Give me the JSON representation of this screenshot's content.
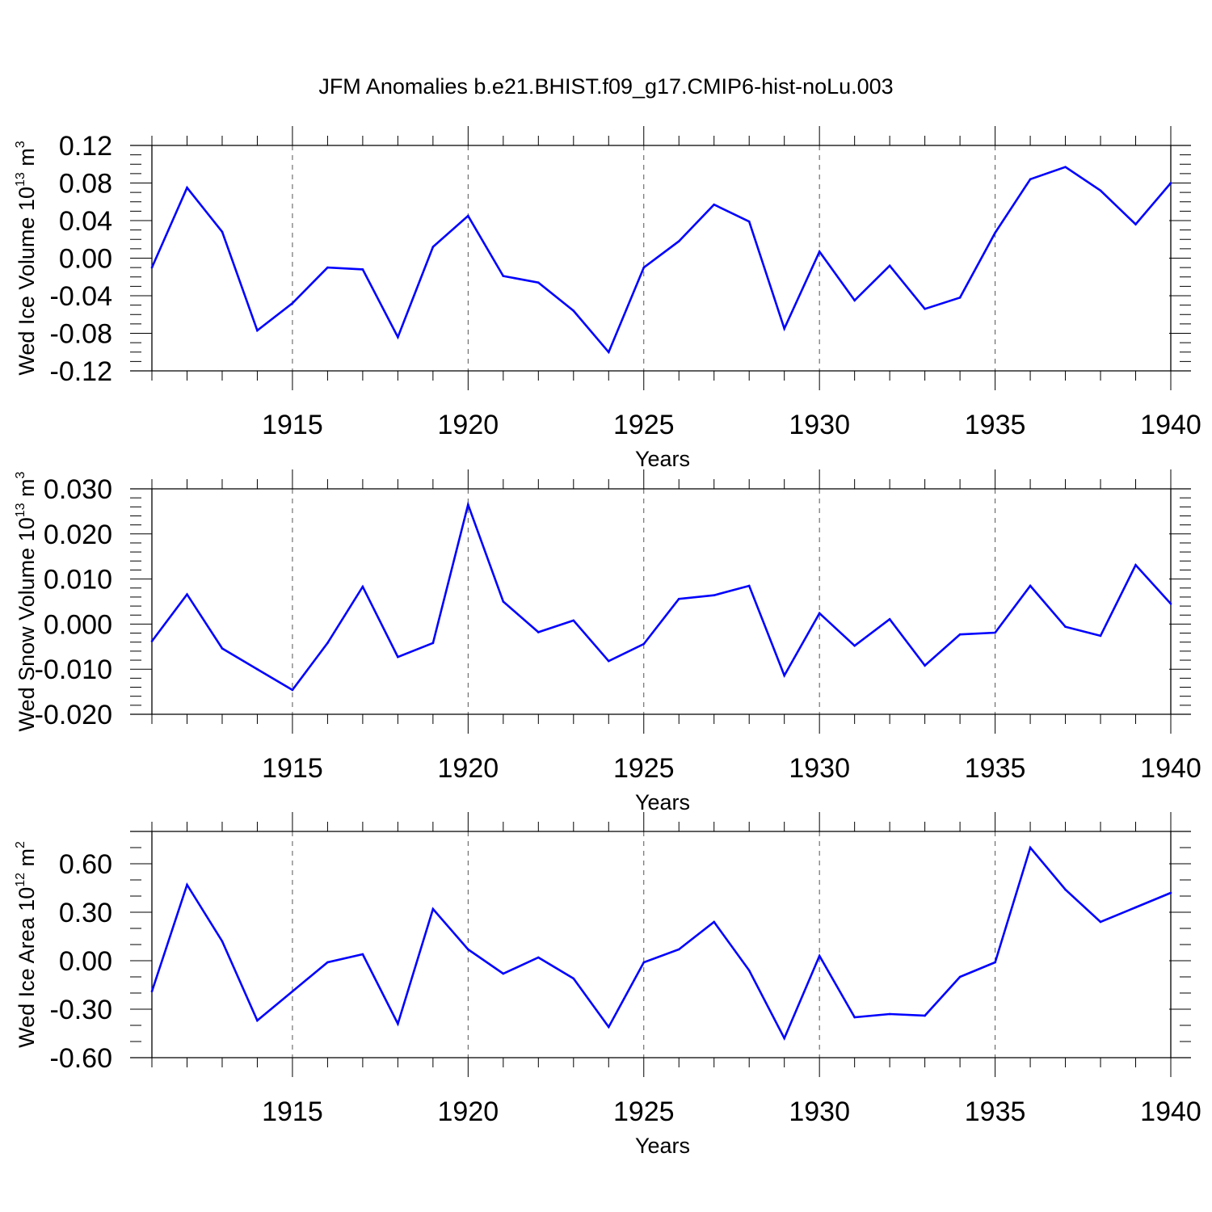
{
  "chart_data": [
    {
      "type": "line",
      "title": "JFM Anomalies b.e21.BHIST.f09_g17.CMIP6-hist-noLu.003",
      "xlabel": "Years",
      "ylabel_main": "Wed Ice Volume 10",
      "ylabel_exp": "13",
      "ylabel_unit": " m",
      "ylabel_unit_exp": "3",
      "xlim": [
        1911,
        1940
      ],
      "ylim": [
        -0.12,
        0.12
      ],
      "yticks": [
        -0.12,
        -0.08,
        -0.04,
        0.0,
        0.04,
        0.08,
        0.12
      ],
      "ytick_labels": [
        "-0.12",
        "-0.08",
        "-0.04",
        "0.00",
        "0.04",
        "0.08",
        "0.12"
      ],
      "yminor_step": 0.01,
      "xticks": [
        1915,
        1920,
        1925,
        1930,
        1935,
        1940
      ],
      "xtick_labels": [
        "1915",
        "1920",
        "1925",
        "1930",
        "1935",
        "1940"
      ],
      "grid": "vertical dashed at major x ticks",
      "line_color": "#0000ff",
      "series": [
        {
          "name": "Wed Ice Volume",
          "x": [
            1911,
            1912,
            1913,
            1914,
            1915,
            1916,
            1917,
            1918,
            1919,
            1920,
            1921,
            1922,
            1923,
            1924,
            1925,
            1926,
            1927,
            1928,
            1929,
            1930,
            1931,
            1932,
            1933,
            1934,
            1935,
            1936,
            1937,
            1938,
            1939,
            1940
          ],
          "values": [
            -0.01,
            0.075,
            0.028,
            -0.077,
            -0.048,
            -0.01,
            -0.012,
            -0.084,
            0.012,
            0.045,
            -0.019,
            -0.026,
            -0.056,
            -0.1,
            -0.01,
            0.018,
            0.057,
            0.039,
            -0.075,
            0.007,
            -0.045,
            -0.008,
            -0.054,
            -0.042,
            0.027,
            0.084,
            0.097,
            0.072,
            0.036,
            0.08
          ]
        }
      ]
    },
    {
      "type": "line",
      "title": "",
      "xlabel": "Years",
      "ylabel_main": "Wed Snow Volume 10",
      "ylabel_exp": "13",
      "ylabel_unit": " m",
      "ylabel_unit_exp": "3",
      "xlim": [
        1911,
        1940
      ],
      "ylim": [
        -0.02,
        0.03
      ],
      "yticks": [
        -0.02,
        -0.01,
        0.0,
        0.01,
        0.02,
        0.03
      ],
      "ytick_labels": [
        "-0.020",
        "-0.010",
        "0.000",
        "0.010",
        "0.020",
        "0.030"
      ],
      "yminor_step": 0.002,
      "xticks": [
        1915,
        1920,
        1925,
        1930,
        1935,
        1940
      ],
      "xtick_labels": [
        "1915",
        "1920",
        "1925",
        "1930",
        "1935",
        "1940"
      ],
      "grid": "vertical dashed at major x ticks",
      "line_color": "#0000ff",
      "series": [
        {
          "name": "Wed Snow Volume",
          "x": [
            1911,
            1912,
            1913,
            1914,
            1915,
            1916,
            1917,
            1918,
            1919,
            1920,
            1921,
            1922,
            1923,
            1924,
            1925,
            1926,
            1927,
            1928,
            1929,
            1930,
            1931,
            1932,
            1933,
            1934,
            1935,
            1936,
            1937,
            1938,
            1939,
            1940
          ],
          "values": [
            -0.0038,
            0.0066,
            -0.0054,
            -0.01,
            -0.0146,
            -0.0042,
            0.0083,
            -0.0073,
            -0.0042,
            0.0265,
            0.005,
            -0.0018,
            0.0008,
            -0.0082,
            -0.0044,
            0.0056,
            0.0064,
            0.0085,
            -0.0114,
            0.0024,
            -0.0048,
            0.0011,
            -0.0092,
            -0.0023,
            -0.0019,
            0.0085,
            -0.0006,
            -0.0026,
            0.0131,
            0.0045
          ]
        }
      ]
    },
    {
      "type": "line",
      "title": "",
      "xlabel": "Years",
      "ylabel_main": "Wed Ice Area 10",
      "ylabel_exp": "12",
      "ylabel_unit": " m",
      "ylabel_unit_exp": "2",
      "xlim": [
        1911,
        1940
      ],
      "ylim": [
        -0.6,
        0.8
      ],
      "yticks": [
        -0.6,
        -0.3,
        0.0,
        0.3,
        0.6
      ],
      "ytick_labels": [
        "-0.60",
        "-0.30",
        "0.00",
        "0.30",
        "0.60"
      ],
      "yminor_step": 0.1,
      "xticks": [
        1915,
        1920,
        1925,
        1930,
        1935,
        1940
      ],
      "xtick_labels": [
        "1915",
        "1920",
        "1925",
        "1930",
        "1935",
        "1940"
      ],
      "grid": "vertical dashed at major x ticks",
      "line_color": "#0000ff",
      "series": [
        {
          "name": "Wed Ice Area",
          "x": [
            1911,
            1912,
            1913,
            1914,
            1915,
            1916,
            1917,
            1918,
            1919,
            1920,
            1921,
            1922,
            1923,
            1924,
            1925,
            1926,
            1927,
            1928,
            1929,
            1930,
            1931,
            1932,
            1933,
            1934,
            1935,
            1936,
            1937,
            1938,
            1939,
            1940
          ],
          "values": [
            -0.19,
            0.47,
            0.12,
            -0.37,
            -0.19,
            -0.01,
            0.04,
            -0.39,
            0.32,
            0.07,
            -0.08,
            0.02,
            -0.11,
            -0.41,
            -0.01,
            0.07,
            0.24,
            -0.06,
            -0.48,
            0.03,
            -0.35,
            -0.33,
            -0.34,
            -0.1,
            -0.01,
            0.7,
            0.44,
            0.24,
            0.33,
            0.42
          ]
        }
      ]
    }
  ]
}
